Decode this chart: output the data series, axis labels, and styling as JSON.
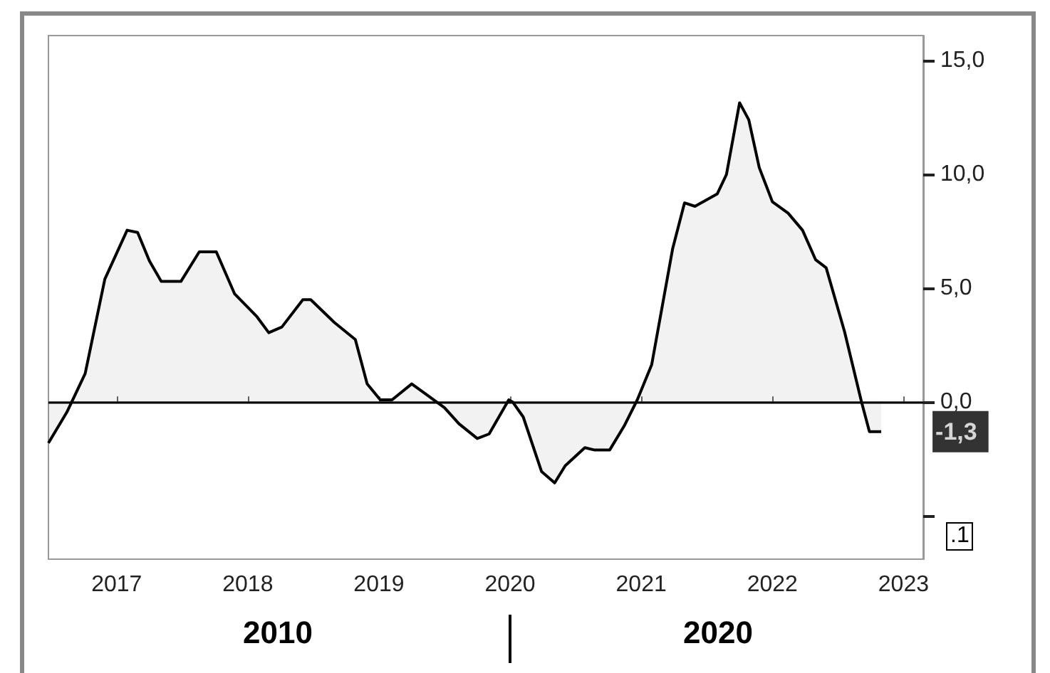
{
  "chart_data": {
    "type": "area",
    "x": [
      2016.48,
      2016.62,
      2016.76,
      2016.91,
      2017.08,
      2017.16,
      2017.25,
      2017.34,
      2017.49,
      2017.63,
      2017.76,
      2017.9,
      2018.07,
      2018.16,
      2018.26,
      2018.42,
      2018.48,
      2018.66,
      2018.82,
      2018.91,
      2019.01,
      2019.1,
      2019.25,
      2019.37,
      2019.5,
      2019.61,
      2019.75,
      2019.84,
      2019.99,
      2020.02,
      2020.1,
      2020.24,
      2020.34,
      2020.42,
      2020.57,
      2020.64,
      2020.76,
      2020.87,
      2020.97,
      2021.08,
      2021.24,
      2021.33,
      2021.41,
      2021.58,
      2021.65,
      2021.75,
      2021.82,
      2021.9,
      2022.0,
      2022.12,
      2022.23,
      2022.33,
      2022.41,
      2022.55,
      2022.68,
      2022.74,
      2022.83
    ],
    "series": [
      {
        "color": "#000000",
        "values": [
          -1.8,
          -0.45,
          1.25,
          5.4,
          7.55,
          7.45,
          6.2,
          5.3,
          5.3,
          6.6,
          6.6,
          4.75,
          3.75,
          3.05,
          3.3,
          4.5,
          4.5,
          3.5,
          2.75,
          0.8,
          0.1,
          0.1,
          0.8,
          0.3,
          -0.25,
          -0.95,
          -1.6,
          -1.4,
          0.1,
          0,
          -0.65,
          -3.05,
          -3.55,
          -2.8,
          -2.0,
          -2.1,
          -2.1,
          -1.05,
          0.1,
          1.65,
          6.75,
          8.75,
          8.6,
          9.15,
          10.0,
          13.15,
          12.4,
          10.3,
          8.8,
          8.3,
          7.55,
          6.25,
          5.9,
          3.1,
          0,
          -1.3,
          -1.3
        ]
      }
    ],
    "xlim": [
      2016.48,
      2023.15
    ],
    "xticks": [
      2017,
      2018,
      2019,
      2020,
      2021,
      2022,
      2023
    ],
    "ylim": [
      -6.9,
      16.1
    ],
    "yticks": [
      {
        "value": -5,
        "label": null
      },
      {
        "value": 0,
        "label": "0,0"
      },
      {
        "value": 5,
        "label": "5,0"
      },
      {
        "value": 10,
        "label": "10,0"
      },
      {
        "value": 15,
        "label": "15,0"
      }
    ],
    "ref_lines": [
      {
        "axis": "y",
        "value": 0,
        "color": "#000000"
      }
    ],
    "annotations": [
      {
        "text": "-1,3",
        "x": 2022.83,
        "y": -1.3
      },
      "2010",
      "2020",
      ".1"
    ],
    "marker": "none",
    "line_style": "solid"
  }
}
